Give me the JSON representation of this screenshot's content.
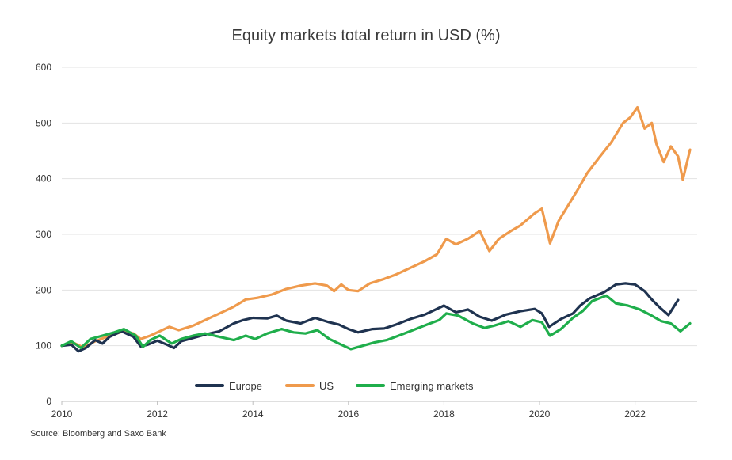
{
  "chart_data": {
    "type": "line",
    "title": "Equity markets total return in USD (%)",
    "xlabel": "",
    "ylabel": "",
    "x_ticks": [
      "2010",
      "2012",
      "2014",
      "2016",
      "2018",
      "2020",
      "2022"
    ],
    "y_ticks": [
      "0",
      "100",
      "200",
      "300",
      "400",
      "500",
      "600"
    ],
    "xlim": [
      2010,
      2023.3
    ],
    "ylim": [
      0,
      600
    ],
    "grid": "horizontal",
    "legend_position": "bottom-center",
    "series": [
      {
        "name": "Europe",
        "color": "#1f3350",
        "points": [
          [
            2010.0,
            100
          ],
          [
            2010.2,
            102
          ],
          [
            2010.35,
            90
          ],
          [
            2010.5,
            96
          ],
          [
            2010.7,
            110
          ],
          [
            2010.85,
            104
          ],
          [
            2011.0,
            116
          ],
          [
            2011.25,
            126
          ],
          [
            2011.5,
            116
          ],
          [
            2011.65,
            99
          ],
          [
            2011.8,
            102
          ],
          [
            2012.0,
            109
          ],
          [
            2012.2,
            102
          ],
          [
            2012.35,
            96
          ],
          [
            2012.5,
            108
          ],
          [
            2012.75,
            114
          ],
          [
            2013.0,
            120
          ],
          [
            2013.3,
            126
          ],
          [
            2013.6,
            140
          ],
          [
            2013.8,
            146
          ],
          [
            2014.0,
            150
          ],
          [
            2014.3,
            149
          ],
          [
            2014.5,
            154
          ],
          [
            2014.7,
            145
          ],
          [
            2015.0,
            140
          ],
          [
            2015.3,
            150
          ],
          [
            2015.6,
            142
          ],
          [
            2015.8,
            138
          ],
          [
            2016.0,
            130
          ],
          [
            2016.2,
            124
          ],
          [
            2016.5,
            130
          ],
          [
            2016.75,
            131
          ],
          [
            2017.0,
            138
          ],
          [
            2017.3,
            148
          ],
          [
            2017.6,
            156
          ],
          [
            2017.8,
            164
          ],
          [
            2018.0,
            172
          ],
          [
            2018.25,
            160
          ],
          [
            2018.5,
            165
          ],
          [
            2018.75,
            152
          ],
          [
            2019.0,
            145
          ],
          [
            2019.3,
            156
          ],
          [
            2019.6,
            162
          ],
          [
            2019.9,
            166
          ],
          [
            2020.05,
            158
          ],
          [
            2020.2,
            134
          ],
          [
            2020.45,
            148
          ],
          [
            2020.7,
            158
          ],
          [
            2020.85,
            172
          ],
          [
            2021.05,
            185
          ],
          [
            2021.35,
            196
          ],
          [
            2021.6,
            210
          ],
          [
            2021.8,
            212
          ],
          [
            2022.0,
            210
          ],
          [
            2022.2,
            198
          ],
          [
            2022.35,
            183
          ],
          [
            2022.5,
            170
          ],
          [
            2022.7,
            155
          ],
          [
            2022.9,
            182
          ]
        ]
      },
      {
        "name": "US",
        "color": "#ef9a4c",
        "points": [
          [
            2010.0,
            100
          ],
          [
            2010.25,
            105
          ],
          [
            2010.45,
            97
          ],
          [
            2010.7,
            108
          ],
          [
            2011.0,
            118
          ],
          [
            2011.3,
            126
          ],
          [
            2011.5,
            122
          ],
          [
            2011.65,
            112
          ],
          [
            2011.85,
            118
          ],
          [
            2012.0,
            124
          ],
          [
            2012.25,
            134
          ],
          [
            2012.45,
            128
          ],
          [
            2012.75,
            136
          ],
          [
            2013.0,
            146
          ],
          [
            2013.3,
            158
          ],
          [
            2013.6,
            170
          ],
          [
            2013.85,
            183
          ],
          [
            2014.1,
            186
          ],
          [
            2014.4,
            192
          ],
          [
            2014.7,
            202
          ],
          [
            2015.0,
            208
          ],
          [
            2015.3,
            212
          ],
          [
            2015.55,
            208
          ],
          [
            2015.7,
            198
          ],
          [
            2015.85,
            210
          ],
          [
            2016.0,
            200
          ],
          [
            2016.2,
            198
          ],
          [
            2016.45,
            212
          ],
          [
            2016.75,
            220
          ],
          [
            2017.0,
            228
          ],
          [
            2017.3,
            240
          ],
          [
            2017.6,
            252
          ],
          [
            2017.85,
            264
          ],
          [
            2018.05,
            292
          ],
          [
            2018.25,
            282
          ],
          [
            2018.5,
            292
          ],
          [
            2018.75,
            306
          ],
          [
            2018.95,
            270
          ],
          [
            2019.15,
            292
          ],
          [
            2019.4,
            306
          ],
          [
            2019.6,
            316
          ],
          [
            2019.9,
            338
          ],
          [
            2020.05,
            346
          ],
          [
            2020.22,
            284
          ],
          [
            2020.4,
            324
          ],
          [
            2020.6,
            352
          ],
          [
            2020.8,
            380
          ],
          [
            2021.0,
            410
          ],
          [
            2021.25,
            438
          ],
          [
            2021.5,
            465
          ],
          [
            2021.75,
            500
          ],
          [
            2021.9,
            510
          ],
          [
            2022.05,
            528
          ],
          [
            2022.2,
            490
          ],
          [
            2022.35,
            500
          ],
          [
            2022.45,
            462
          ],
          [
            2022.6,
            430
          ],
          [
            2022.75,
            458
          ],
          [
            2022.9,
            440
          ],
          [
            2023.0,
            398
          ],
          [
            2023.15,
            452
          ]
        ]
      },
      {
        "name": "Emerging markets",
        "color": "#1fae4b",
        "points": [
          [
            2010.0,
            100
          ],
          [
            2010.2,
            108
          ],
          [
            2010.4,
            96
          ],
          [
            2010.6,
            112
          ],
          [
            2010.85,
            118
          ],
          [
            2011.1,
            124
          ],
          [
            2011.3,
            130
          ],
          [
            2011.55,
            118
          ],
          [
            2011.7,
            98
          ],
          [
            2011.85,
            110
          ],
          [
            2012.05,
            118
          ],
          [
            2012.3,
            104
          ],
          [
            2012.5,
            112
          ],
          [
            2012.75,
            118
          ],
          [
            2013.0,
            122
          ],
          [
            2013.3,
            116
          ],
          [
            2013.6,
            110
          ],
          [
            2013.85,
            118
          ],
          [
            2014.05,
            112
          ],
          [
            2014.3,
            122
          ],
          [
            2014.6,
            130
          ],
          [
            2014.85,
            124
          ],
          [
            2015.1,
            122
          ],
          [
            2015.35,
            128
          ],
          [
            2015.6,
            112
          ],
          [
            2015.85,
            102
          ],
          [
            2016.05,
            94
          ],
          [
            2016.3,
            100
          ],
          [
            2016.55,
            106
          ],
          [
            2016.8,
            110
          ],
          [
            2017.05,
            118
          ],
          [
            2017.35,
            128
          ],
          [
            2017.65,
            138
          ],
          [
            2017.9,
            146
          ],
          [
            2018.05,
            158
          ],
          [
            2018.3,
            154
          ],
          [
            2018.6,
            140
          ],
          [
            2018.85,
            132
          ],
          [
            2019.05,
            136
          ],
          [
            2019.35,
            144
          ],
          [
            2019.6,
            134
          ],
          [
            2019.85,
            146
          ],
          [
            2020.05,
            142
          ],
          [
            2020.22,
            118
          ],
          [
            2020.45,
            130
          ],
          [
            2020.7,
            150
          ],
          [
            2020.9,
            162
          ],
          [
            2021.1,
            180
          ],
          [
            2021.4,
            190
          ],
          [
            2021.6,
            176
          ],
          [
            2021.85,
            172
          ],
          [
            2022.1,
            165
          ],
          [
            2022.35,
            154
          ],
          [
            2022.55,
            144
          ],
          [
            2022.75,
            140
          ],
          [
            2022.95,
            126
          ],
          [
            2023.15,
            140
          ]
        ]
      }
    ],
    "source": "Source: Bloomberg and Saxo Bank"
  }
}
